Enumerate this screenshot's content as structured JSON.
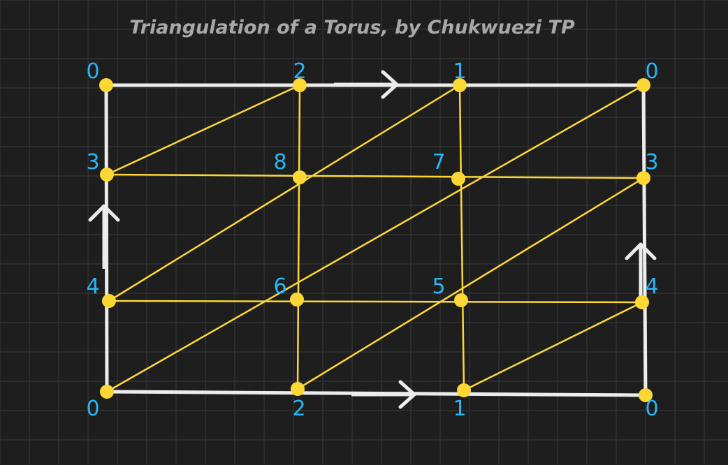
{
  "title": "Triangulation of a Torus, by Chukwuezi TP",
  "colors": {
    "background": "#1e1e1e",
    "grid": "#2c2c2c",
    "frame": "#ececec",
    "edges": "#fdd835",
    "vertices": "#fdd835",
    "labels": "#29b6f6",
    "title": "#a8a8a8"
  },
  "vertices": [
    {
      "id": "tl",
      "label": "0"
    },
    {
      "id": "t2",
      "label": "2"
    },
    {
      "id": "t1",
      "label": "1"
    },
    {
      "id": "tr",
      "label": "0"
    },
    {
      "id": "l3",
      "label": "3"
    },
    {
      "id": "v8",
      "label": "8"
    },
    {
      "id": "v7",
      "label": "7"
    },
    {
      "id": "r3",
      "label": "3"
    },
    {
      "id": "l4",
      "label": "4"
    },
    {
      "id": "v6",
      "label": "6"
    },
    {
      "id": "v5",
      "label": "5"
    },
    {
      "id": "r4",
      "label": "4"
    },
    {
      "id": "bl",
      "label": "0"
    },
    {
      "id": "b2",
      "label": "2"
    },
    {
      "id": "b1",
      "label": "1"
    },
    {
      "id": "br",
      "label": "0"
    }
  ],
  "frame_edges": [
    [
      "tl",
      "tr"
    ],
    [
      "bl",
      "br"
    ],
    [
      "tl",
      "bl"
    ],
    [
      "tr",
      "br"
    ]
  ],
  "triangulation_edges": [
    [
      "l3",
      "r3"
    ],
    [
      "l4",
      "r4"
    ],
    [
      "t2",
      "b2"
    ],
    [
      "t1",
      "b1"
    ],
    [
      "l3",
      "t2"
    ],
    [
      "l4",
      "t1"
    ],
    [
      "bl",
      "tr"
    ],
    [
      "b2",
      "r3"
    ],
    [
      "b1",
      "r4"
    ]
  ],
  "identification_arrows": [
    {
      "edge": "top",
      "type": "single-chevron",
      "direction": "right"
    },
    {
      "edge": "bottom",
      "type": "single-chevron",
      "direction": "right"
    },
    {
      "edge": "left",
      "type": "single-chevron",
      "direction": "up"
    },
    {
      "edge": "right",
      "type": "single-chevron",
      "direction": "up"
    }
  ]
}
